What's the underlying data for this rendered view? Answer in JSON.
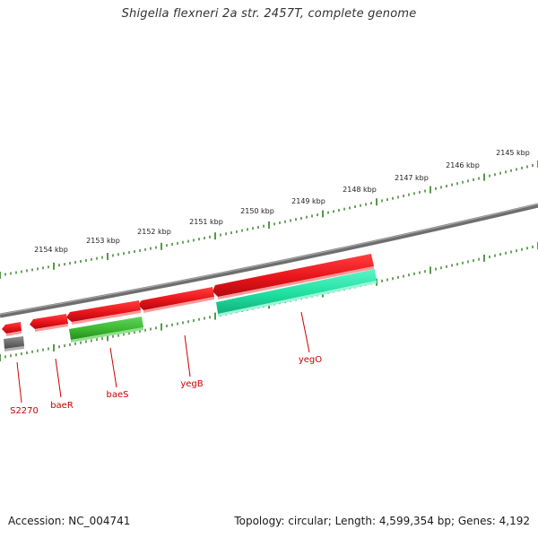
{
  "title": "Shigella flexneri 2a str. 2457T, complete genome",
  "footer": {
    "accession_label": "Accession:",
    "accession": "NC_004741",
    "topology_label": "Topology:",
    "topology": "circular",
    "length_label": "Length:",
    "length": "4,599,354 bp",
    "genes_label": "Genes:",
    "genes": "4,192"
  },
  "ruler": {
    "unit": "kbp",
    "labels": [
      "2145 kbp",
      "2146 kbp",
      "2147 kbp",
      "2148 kbp",
      "2149 kbp",
      "2150 kbp",
      "2151 kbp",
      "2152 kbp",
      "2153 kbp",
      "2154 kbp"
    ]
  },
  "colors": {
    "backbone": "#7a7a7a",
    "tick": "#2e7d1e",
    "gene_forward": "#e8141a",
    "gene_reverse_green": "#3cb832",
    "gene_reverse_cyan": "#1fe0a0",
    "gene_pseudo": "#6a6a6a",
    "label": "#cc0000"
  },
  "genes": [
    {
      "id": "S2270",
      "label": "S2270"
    },
    {
      "id": "baeR",
      "label": "baeR"
    },
    {
      "id": "baeS",
      "label": "baeS"
    },
    {
      "id": "yegB",
      "label": "yegB"
    },
    {
      "id": "yegO",
      "label": "yegO"
    }
  ]
}
